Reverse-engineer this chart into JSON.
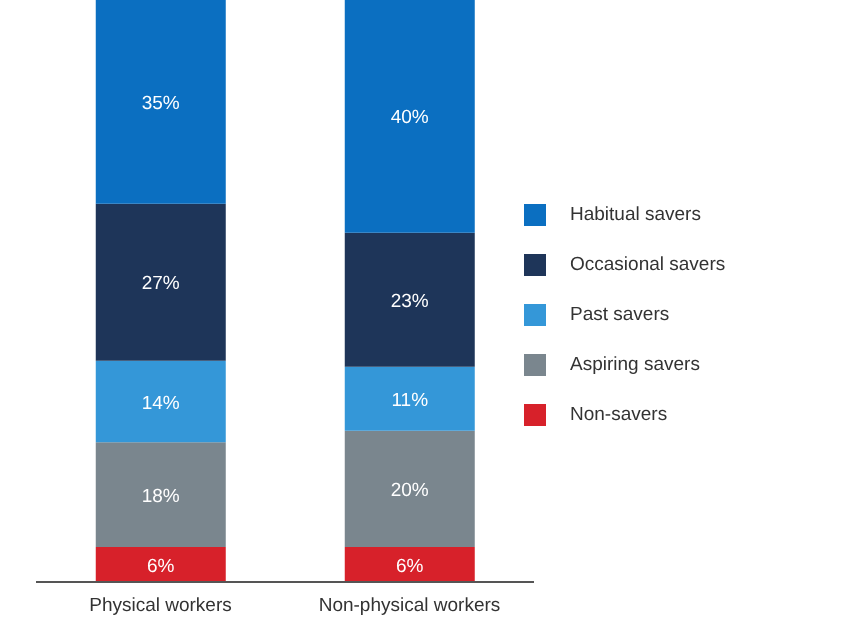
{
  "chart_data": {
    "type": "bar",
    "stacked": true,
    "categories": [
      "Physical workers",
      "Non-physical workers"
    ],
    "legend": "right",
    "series": [
      {
        "name": "Non-savers",
        "color": "#d7212a",
        "values": [
          6,
          6
        ],
        "value_labels": [
          "6%",
          "6%"
        ]
      },
      {
        "name": "Aspiring savers",
        "color": "#7a868e",
        "values": [
          18,
          20
        ],
        "value_labels": [
          "18%",
          "20%"
        ]
      },
      {
        "name": "Past savers",
        "color": "#3497d8",
        "values": [
          14,
          11
        ],
        "value_labels": [
          "14%",
          "11%"
        ]
      },
      {
        "name": "Occasional savers",
        "color": "#1e3559",
        "values": [
          27,
          23
        ],
        "value_labels": [
          "27%",
          "23%"
        ]
      },
      {
        "name": "Habitual savers",
        "color": "#0b6fc1",
        "values": [
          35,
          40
        ],
        "value_labels": [
          "35%",
          "40%"
        ]
      }
    ]
  }
}
